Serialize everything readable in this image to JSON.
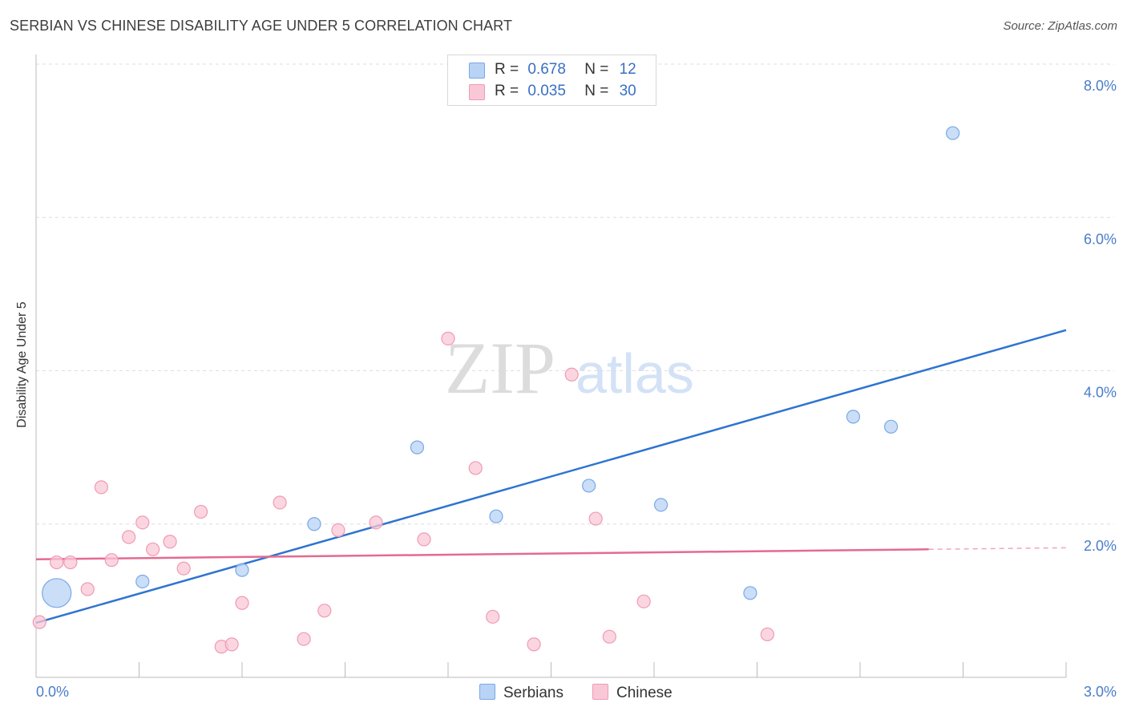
{
  "title": "SERBIAN VS CHINESE DISABILITY AGE UNDER 5 CORRELATION CHART",
  "source": "Source: ZipAtlas.com",
  "watermark": {
    "zip": "ZIP",
    "atlas": "atlas"
  },
  "legend": {
    "series": [
      {
        "r_label": "R =",
        "r_value": "0.678",
        "n_label": "N =",
        "n_value": "12",
        "color": "#b8d3f5",
        "border": "#7aa8e6"
      },
      {
        "r_label": "R =",
        "r_value": "0.035",
        "n_label": "N =",
        "n_value": "30",
        "color": "#f9c8d6",
        "border": "#ef9ab4"
      }
    ]
  },
  "bottom_legend": {
    "serbians": "Serbians",
    "chinese": "Chinese"
  },
  "chart_data": {
    "type": "scatter",
    "title": "SERBIAN VS CHINESE DISABILITY AGE UNDER 5 CORRELATION CHART",
    "xlabel": "",
    "ylabel": "Disability Age Under 5",
    "xlim": [
      0,
      3.0
    ],
    "ylim": [
      0,
      8.0
    ],
    "x_tick_labels": [
      "0.0%",
      "3.0%"
    ],
    "y_ticks": [
      2.0,
      4.0,
      6.0,
      8.0
    ],
    "y_tick_labels": [
      "2.0%",
      "4.0%",
      "6.0%",
      "8.0%"
    ],
    "grid": "horizontal dashed",
    "legend_position": "top-center",
    "series": [
      {
        "name": "Serbians",
        "color": "#b8d3f5",
        "stroke": "#7aa8e6",
        "line_color": "#2f74d0",
        "points": [
          {
            "x": 0.06,
            "y": 1.1,
            "big": true
          },
          {
            "x": 0.31,
            "y": 1.25
          },
          {
            "x": 0.6,
            "y": 1.4
          },
          {
            "x": 0.81,
            "y": 2.0
          },
          {
            "x": 1.11,
            "y": 3.0
          },
          {
            "x": 1.34,
            "y": 2.1
          },
          {
            "x": 1.61,
            "y": 2.5
          },
          {
            "x": 1.82,
            "y": 2.25
          },
          {
            "x": 2.08,
            "y": 1.1
          },
          {
            "x": 2.38,
            "y": 3.4
          },
          {
            "x": 2.49,
            "y": 3.27
          },
          {
            "x": 2.67,
            "y": 7.1
          }
        ],
        "trend": {
          "x0": 0.0,
          "y0": 0.71,
          "x1": 3.0,
          "y1": 4.53
        }
      },
      {
        "name": "Chinese",
        "color": "#f9c8d6",
        "stroke": "#ef9ab4",
        "line_color": "#e46a93",
        "points": [
          {
            "x": 0.01,
            "y": 0.72
          },
          {
            "x": 0.06,
            "y": 1.5
          },
          {
            "x": 0.1,
            "y": 1.5
          },
          {
            "x": 0.15,
            "y": 1.15
          },
          {
            "x": 0.19,
            "y": 2.48
          },
          {
            "x": 0.22,
            "y": 1.53
          },
          {
            "x": 0.27,
            "y": 1.83
          },
          {
            "x": 0.31,
            "y": 2.02
          },
          {
            "x": 0.34,
            "y": 1.67
          },
          {
            "x": 0.39,
            "y": 1.77
          },
          {
            "x": 0.43,
            "y": 1.42
          },
          {
            "x": 0.48,
            "y": 2.16
          },
          {
            "x": 0.54,
            "y": 0.4
          },
          {
            "x": 0.57,
            "y": 0.43
          },
          {
            "x": 0.6,
            "y": 0.97
          },
          {
            "x": 0.71,
            "y": 2.28
          },
          {
            "x": 0.78,
            "y": 0.5
          },
          {
            "x": 0.84,
            "y": 0.87
          },
          {
            "x": 0.88,
            "y": 1.92
          },
          {
            "x": 0.99,
            "y": 2.02
          },
          {
            "x": 1.13,
            "y": 1.8
          },
          {
            "x": 1.2,
            "y": 4.42
          },
          {
            "x": 1.28,
            "y": 2.73
          },
          {
            "x": 1.33,
            "y": 0.79
          },
          {
            "x": 1.45,
            "y": 0.43
          },
          {
            "x": 1.56,
            "y": 3.95
          },
          {
            "x": 1.63,
            "y": 2.07
          },
          {
            "x": 1.67,
            "y": 0.53
          },
          {
            "x": 1.77,
            "y": 0.99
          },
          {
            "x": 2.13,
            "y": 0.56
          }
        ],
        "trend": {
          "x0": 0.0,
          "y0": 1.54,
          "x1": 2.6,
          "y1": 1.67
        },
        "trend_dashed": {
          "x0": 2.6,
          "y0": 1.67,
          "x1": 3.0,
          "y1": 1.69
        }
      }
    ]
  }
}
